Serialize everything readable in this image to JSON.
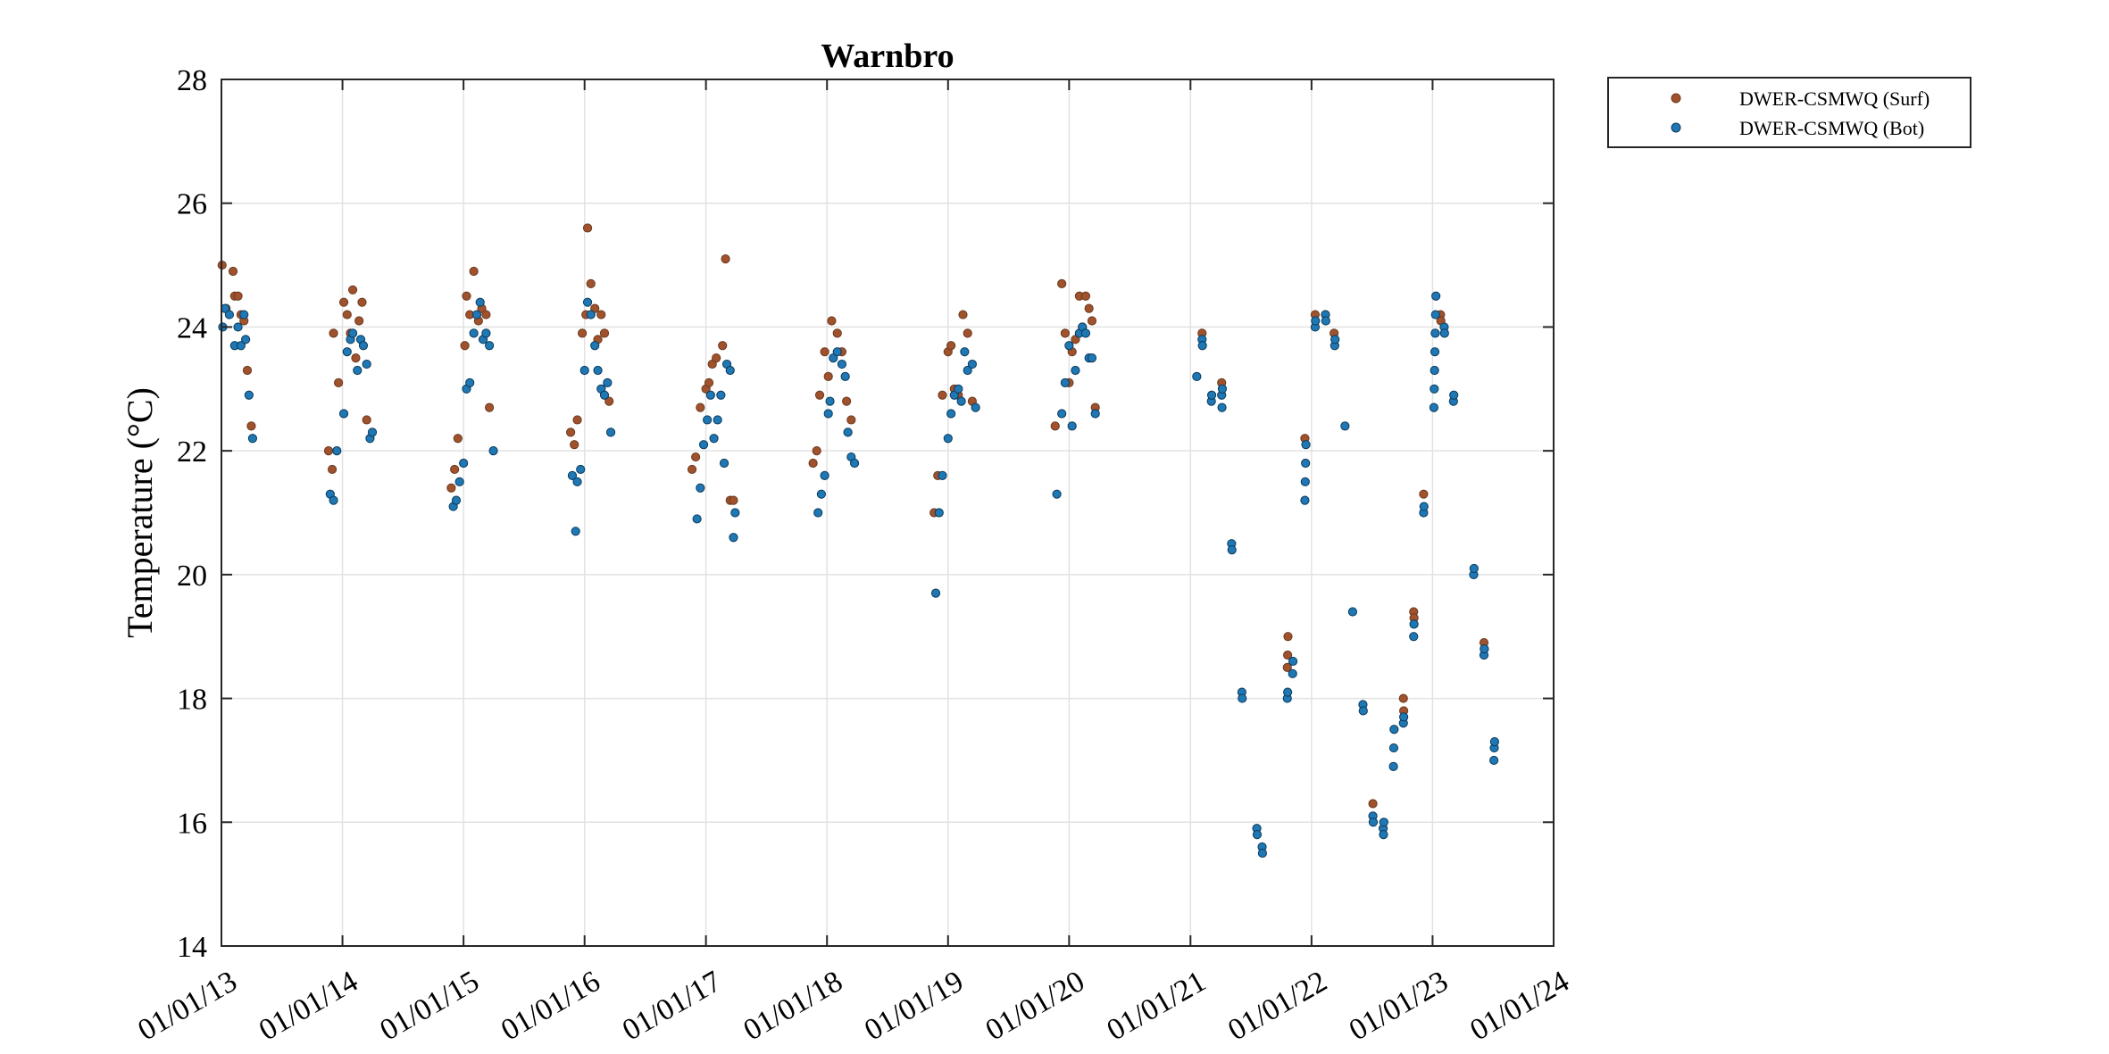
{
  "chart_data": {
    "type": "scatter",
    "title": "Warnbro",
    "xlabel": "",
    "ylabel": "Temperature (°C)",
    "xlim": [
      "2013-01-01",
      "2024-01-01"
    ],
    "ylim": [
      14,
      28
    ],
    "yticks": [
      14,
      16,
      18,
      20,
      22,
      24,
      26,
      28
    ],
    "xtick_labels": [
      "01/01/13",
      "01/01/14",
      "01/01/15",
      "01/01/16",
      "01/01/17",
      "01/01/18",
      "01/01/19",
      "01/01/20",
      "01/01/21",
      "01/01/22",
      "01/01/23",
      "01/01/24"
    ],
    "xtick_dates": [
      "2013-01-01",
      "2014-01-01",
      "2015-01-01",
      "2016-01-01",
      "2017-01-01",
      "2018-01-01",
      "2019-01-01",
      "2020-01-01",
      "2021-01-01",
      "2022-01-01",
      "2023-01-01",
      "2024-01-01"
    ],
    "grid": true,
    "legend_position": "outside-top-right",
    "series": [
      {
        "name": "DWER-CSMWQ (Surf)",
        "color": "#a0522d",
        "points": [
          [
            "2013-01-03",
            25.0
          ],
          [
            "2013-01-15",
            24.3
          ],
          [
            "2013-02-05",
            24.9
          ],
          [
            "2013-02-10",
            24.5
          ],
          [
            "2013-02-20",
            24.5
          ],
          [
            "2013-03-01",
            24.2
          ],
          [
            "2013-03-10",
            24.1
          ],
          [
            "2013-03-20",
            23.3
          ],
          [
            "2013-04-01",
            22.4
          ],
          [
            "2013-11-20",
            22.0
          ],
          [
            "2013-12-01",
            21.7
          ],
          [
            "2013-12-05",
            23.9
          ],
          [
            "2013-12-20",
            23.1
          ],
          [
            "2014-01-05",
            24.4
          ],
          [
            "2014-01-15",
            24.2
          ],
          [
            "2014-01-25",
            23.9
          ],
          [
            "2014-02-01",
            24.6
          ],
          [
            "2014-02-10",
            23.5
          ],
          [
            "2014-02-20",
            24.1
          ],
          [
            "2014-03-01",
            24.4
          ],
          [
            "2014-03-15",
            22.5
          ],
          [
            "2014-11-25",
            21.4
          ],
          [
            "2014-12-05",
            21.7
          ],
          [
            "2014-12-15",
            22.2
          ],
          [
            "2015-01-05",
            23.7
          ],
          [
            "2015-01-10",
            24.5
          ],
          [
            "2015-01-20",
            24.2
          ],
          [
            "2015-02-01",
            24.9
          ],
          [
            "2015-02-15",
            24.1
          ],
          [
            "2015-02-25",
            24.3
          ],
          [
            "2015-03-10",
            24.2
          ],
          [
            "2015-03-20",
            22.7
          ],
          [
            "2015-11-20",
            22.3
          ],
          [
            "2015-12-01",
            22.1
          ],
          [
            "2015-12-10",
            22.5
          ],
          [
            "2015-12-25",
            23.9
          ],
          [
            "2016-01-05",
            24.2
          ],
          [
            "2016-01-10",
            25.6
          ],
          [
            "2016-01-20",
            24.7
          ],
          [
            "2016-02-01",
            24.3
          ],
          [
            "2016-02-10",
            23.8
          ],
          [
            "2016-02-20",
            24.2
          ],
          [
            "2016-03-01",
            23.9
          ],
          [
            "2016-03-15",
            22.8
          ],
          [
            "2016-11-20",
            21.7
          ],
          [
            "2016-12-01",
            21.9
          ],
          [
            "2016-12-15",
            22.7
          ],
          [
            "2017-01-01",
            23.0
          ],
          [
            "2017-01-10",
            23.1
          ],
          [
            "2017-01-20",
            23.4
          ],
          [
            "2017-02-01",
            23.5
          ],
          [
            "2017-02-20",
            23.7
          ],
          [
            "2017-03-01",
            25.1
          ],
          [
            "2017-03-15",
            21.2
          ],
          [
            "2017-03-25",
            21.2
          ],
          [
            "2017-11-20",
            21.8
          ],
          [
            "2017-12-01",
            22.0
          ],
          [
            "2017-12-10",
            22.9
          ],
          [
            "2017-12-25",
            23.6
          ],
          [
            "2018-01-05",
            23.2
          ],
          [
            "2018-01-15",
            24.1
          ],
          [
            "2018-02-01",
            23.9
          ],
          [
            "2018-02-15",
            23.6
          ],
          [
            "2018-03-01",
            22.8
          ],
          [
            "2018-03-15",
            22.5
          ],
          [
            "2018-11-20",
            21.0
          ],
          [
            "2018-12-01",
            21.6
          ],
          [
            "2018-12-15",
            22.9
          ],
          [
            "2019-01-01",
            23.6
          ],
          [
            "2019-01-10",
            23.7
          ],
          [
            "2019-01-20",
            23.0
          ],
          [
            "2019-02-01",
            22.9
          ],
          [
            "2019-02-15",
            24.2
          ],
          [
            "2019-03-01",
            23.9
          ],
          [
            "2019-03-15",
            22.8
          ],
          [
            "2019-11-20",
            22.4
          ],
          [
            "2019-12-10",
            24.7
          ],
          [
            "2019-12-20",
            23.9
          ],
          [
            "2020-01-01",
            23.1
          ],
          [
            "2020-01-10",
            23.6
          ],
          [
            "2020-01-20",
            23.8
          ],
          [
            "2020-02-01",
            24.5
          ],
          [
            "2020-02-10",
            24.0
          ],
          [
            "2020-02-20",
            24.5
          ],
          [
            "2020-03-01",
            24.3
          ],
          [
            "2020-03-10",
            24.1
          ],
          [
            "2020-03-20",
            22.7
          ],
          [
            "2021-02-05",
            23.9
          ],
          [
            "2021-04-05",
            23.1
          ],
          [
            "2021-10-20",
            18.5
          ],
          [
            "2021-10-21",
            18.7
          ],
          [
            "2021-10-22",
            19.0
          ],
          [
            "2021-12-12",
            22.2
          ],
          [
            "2022-01-12",
            24.2
          ],
          [
            "2022-02-12",
            24.2
          ],
          [
            "2022-03-10",
            23.9
          ],
          [
            "2022-07-05",
            16.3
          ],
          [
            "2022-10-05",
            18.0
          ],
          [
            "2022-10-06",
            17.8
          ],
          [
            "2022-11-05",
            19.4
          ],
          [
            "2022-11-06",
            19.3
          ],
          [
            "2022-12-05",
            21.3
          ],
          [
            "2023-01-25",
            24.2
          ],
          [
            "2023-01-26",
            24.1
          ],
          [
            "2023-06-05",
            18.9
          ],
          [
            "2023-06-06",
            18.8
          ]
        ]
      },
      {
        "name": "DWER-CSMWQ (Bot)",
        "color": "#1f77b4",
        "points": [
          [
            "2013-01-05",
            24.0
          ],
          [
            "2013-01-12",
            24.3
          ],
          [
            "2013-01-25",
            24.2
          ],
          [
            "2013-02-10",
            23.7
          ],
          [
            "2013-02-20",
            24.0
          ],
          [
            "2013-03-01",
            23.7
          ],
          [
            "2013-03-10",
            24.2
          ],
          [
            "2013-03-15",
            23.8
          ],
          [
            "2013-03-25",
            22.9
          ],
          [
            "2013-04-05",
            22.2
          ],
          [
            "2013-11-25",
            21.3
          ],
          [
            "2013-12-05",
            21.2
          ],
          [
            "2013-12-15",
            22.0
          ],
          [
            "2014-01-05",
            22.6
          ],
          [
            "2014-01-15",
            23.6
          ],
          [
            "2014-01-25",
            23.8
          ],
          [
            "2014-02-01",
            23.9
          ],
          [
            "2014-02-15",
            23.3
          ],
          [
            "2014-02-25",
            23.8
          ],
          [
            "2014-03-05",
            23.7
          ],
          [
            "2014-03-15",
            23.4
          ],
          [
            "2014-03-25",
            22.2
          ],
          [
            "2014-04-01",
            22.3
          ],
          [
            "2014-12-01",
            21.1
          ],
          [
            "2014-12-10",
            21.2
          ],
          [
            "2014-12-20",
            21.5
          ],
          [
            "2015-01-01",
            21.8
          ],
          [
            "2015-01-10",
            23.0
          ],
          [
            "2015-01-20",
            23.1
          ],
          [
            "2015-02-01",
            23.9
          ],
          [
            "2015-02-10",
            24.2
          ],
          [
            "2015-02-20",
            24.4
          ],
          [
            "2015-03-01",
            23.8
          ],
          [
            "2015-03-10",
            23.9
          ],
          [
            "2015-03-20",
            23.7
          ],
          [
            "2015-04-01",
            22.0
          ],
          [
            "2015-11-25",
            21.6
          ],
          [
            "2015-12-05",
            20.7
          ],
          [
            "2015-12-10",
            21.5
          ],
          [
            "2015-12-20",
            21.7
          ],
          [
            "2016-01-01",
            23.3
          ],
          [
            "2016-01-10",
            24.4
          ],
          [
            "2016-01-20",
            24.2
          ],
          [
            "2016-02-01",
            23.7
          ],
          [
            "2016-02-10",
            23.3
          ],
          [
            "2016-02-20",
            23.0
          ],
          [
            "2016-03-01",
            22.9
          ],
          [
            "2016-03-10",
            23.1
          ],
          [
            "2016-03-20",
            22.3
          ],
          [
            "2016-12-05",
            20.9
          ],
          [
            "2016-12-15",
            21.4
          ],
          [
            "2016-12-25",
            22.1
          ],
          [
            "2017-01-05",
            22.5
          ],
          [
            "2017-01-15",
            22.9
          ],
          [
            "2017-01-25",
            22.2
          ],
          [
            "2017-02-05",
            22.5
          ],
          [
            "2017-02-15",
            22.9
          ],
          [
            "2017-02-25",
            21.8
          ],
          [
            "2017-03-05",
            23.4
          ],
          [
            "2017-03-15",
            23.3
          ],
          [
            "2017-03-25",
            20.6
          ],
          [
            "2017-03-30",
            21.0
          ],
          [
            "2017-12-05",
            21.0
          ],
          [
            "2017-12-15",
            21.3
          ],
          [
            "2017-12-25",
            21.6
          ],
          [
            "2018-01-05",
            22.6
          ],
          [
            "2018-01-10",
            22.8
          ],
          [
            "2018-01-20",
            23.5
          ],
          [
            "2018-02-01",
            23.6
          ],
          [
            "2018-02-15",
            23.4
          ],
          [
            "2018-02-25",
            23.2
          ],
          [
            "2018-03-05",
            22.3
          ],
          [
            "2018-03-15",
            21.9
          ],
          [
            "2018-03-25",
            21.8
          ],
          [
            "2018-11-25",
            19.7
          ],
          [
            "2018-12-05",
            21.0
          ],
          [
            "2018-12-15",
            21.6
          ],
          [
            "2019-01-01",
            22.2
          ],
          [
            "2019-01-10",
            22.6
          ],
          [
            "2019-01-20",
            22.9
          ],
          [
            "2019-02-01",
            23.0
          ],
          [
            "2019-02-10",
            22.8
          ],
          [
            "2019-02-20",
            23.6
          ],
          [
            "2019-03-01",
            23.3
          ],
          [
            "2019-03-15",
            23.4
          ],
          [
            "2019-03-25",
            22.7
          ],
          [
            "2019-11-25",
            21.3
          ],
          [
            "2019-12-10",
            22.6
          ],
          [
            "2019-12-20",
            23.1
          ],
          [
            "2020-01-01",
            23.7
          ],
          [
            "2020-01-10",
            22.4
          ],
          [
            "2020-01-20",
            23.3
          ],
          [
            "2020-02-01",
            23.9
          ],
          [
            "2020-02-10",
            24.0
          ],
          [
            "2020-02-20",
            23.9
          ],
          [
            "2020-03-01",
            23.5
          ],
          [
            "2020-03-10",
            23.5
          ],
          [
            "2020-03-20",
            22.6
          ],
          [
            "2021-01-20",
            23.2
          ],
          [
            "2021-02-05",
            23.8
          ],
          [
            "2021-02-06",
            23.7
          ],
          [
            "2021-03-05",
            22.8
          ],
          [
            "2021-03-06",
            22.9
          ],
          [
            "2021-04-05",
            22.9
          ],
          [
            "2021-04-06",
            22.7
          ],
          [
            "2021-04-07",
            23.0
          ],
          [
            "2021-05-05",
            20.5
          ],
          [
            "2021-05-06",
            20.4
          ],
          [
            "2021-06-05",
            18.1
          ],
          [
            "2021-06-06",
            18.0
          ],
          [
            "2021-07-20",
            15.9
          ],
          [
            "2021-07-21",
            15.8
          ],
          [
            "2021-08-05",
            15.6
          ],
          [
            "2021-08-06",
            15.5
          ],
          [
            "2021-10-20",
            18.0
          ],
          [
            "2021-10-21",
            18.1
          ],
          [
            "2021-11-05",
            18.4
          ],
          [
            "2021-11-06",
            18.6
          ],
          [
            "2021-12-12",
            21.2
          ],
          [
            "2021-12-13",
            21.5
          ],
          [
            "2021-12-14",
            21.8
          ],
          [
            "2021-12-15",
            22.1
          ],
          [
            "2022-01-12",
            24.0
          ],
          [
            "2022-01-13",
            24.1
          ],
          [
            "2022-02-12",
            24.2
          ],
          [
            "2022-02-13",
            24.1
          ],
          [
            "2022-03-12",
            23.7
          ],
          [
            "2022-03-13",
            23.8
          ],
          [
            "2022-04-12",
            22.4
          ],
          [
            "2022-05-05",
            19.4
          ],
          [
            "2022-06-05",
            17.9
          ],
          [
            "2022-06-06",
            17.8
          ],
          [
            "2022-07-05",
            16.1
          ],
          [
            "2022-07-06",
            16.0
          ],
          [
            "2022-08-05",
            15.9
          ],
          [
            "2022-08-06",
            15.8
          ],
          [
            "2022-08-07",
            16.0
          ],
          [
            "2022-09-05",
            16.9
          ],
          [
            "2022-09-06",
            17.2
          ],
          [
            "2022-09-07",
            17.5
          ],
          [
            "2022-10-05",
            17.6
          ],
          [
            "2022-10-06",
            17.7
          ],
          [
            "2022-11-05",
            19.0
          ],
          [
            "2022-11-06",
            19.2
          ],
          [
            "2022-12-05",
            21.0
          ],
          [
            "2022-12-06",
            21.1
          ],
          [
            "2023-01-05",
            22.7
          ],
          [
            "2023-01-06",
            23.0
          ],
          [
            "2023-01-07",
            23.3
          ],
          [
            "2023-01-08",
            23.6
          ],
          [
            "2023-01-09",
            23.9
          ],
          [
            "2023-01-10",
            24.2
          ],
          [
            "2023-01-11",
            24.5
          ],
          [
            "2023-02-05",
            24.0
          ],
          [
            "2023-02-06",
            23.9
          ],
          [
            "2023-03-05",
            22.8
          ],
          [
            "2023-03-06",
            22.9
          ],
          [
            "2023-05-05",
            20.0
          ],
          [
            "2023-05-06",
            20.1
          ],
          [
            "2023-06-05",
            18.7
          ],
          [
            "2023-06-06",
            18.8
          ],
          [
            "2023-07-05",
            17.0
          ],
          [
            "2023-07-06",
            17.2
          ],
          [
            "2023-07-07",
            17.3
          ]
        ]
      }
    ]
  }
}
